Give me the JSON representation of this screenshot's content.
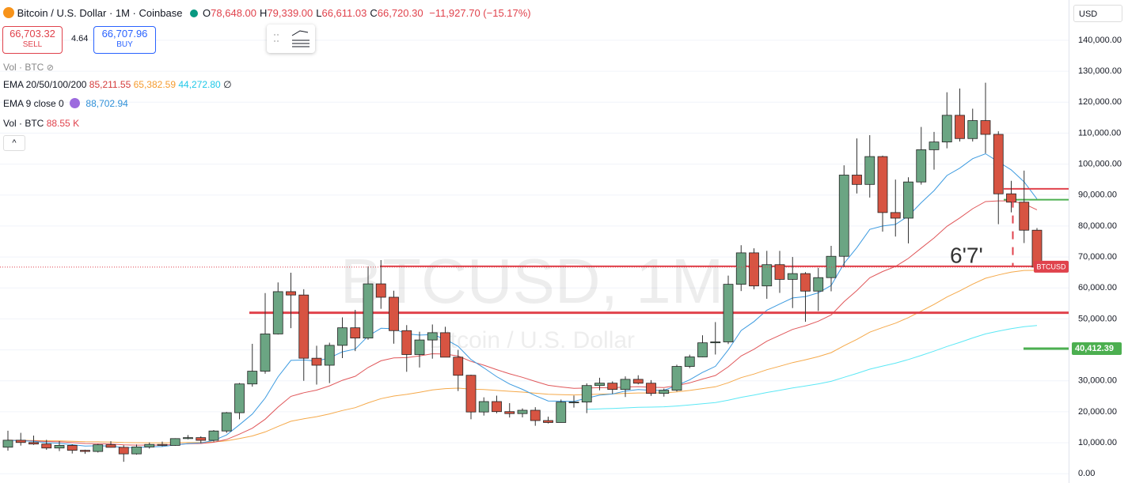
{
  "header": {
    "symbol": "Bitcoin / U.S. Dollar · 1M · Coinbase",
    "ohlc": [
      {
        "label": "O",
        "value": "78,648.00"
      },
      {
        "label": "H",
        "value": "79,339.00"
      },
      {
        "label": "L",
        "value": "66,611.03"
      },
      {
        "label": "C",
        "value": "66,720.30"
      }
    ],
    "change": "−11,927.70 (−15.17%)"
  },
  "trade": {
    "sell_price": "66,703.32",
    "sell": "SELL",
    "spread": "4.64",
    "buy_price": "66,707.96",
    "buy": "BUY"
  },
  "legend": {
    "vol_hidden": "Vol · BTC",
    "ema_multi": {
      "name": "EMA 20/50/100/200",
      "values": [
        "85,211.55",
        "65,382.59",
        "44,272.80",
        "∅"
      ]
    },
    "ema9": {
      "name": "EMA 9 close 0",
      "value": "88,702.94"
    },
    "vol": {
      "name": "Vol · BTC",
      "value": "88.55 K"
    }
  },
  "currency": "USD",
  "watermark": {
    "title": "BTCUSD, 1M",
    "subtitle": "Bitcoin / U.S. Dollar"
  },
  "annotation": "6'7'",
  "chart_data": {
    "type": "candlestick",
    "open": [
      8564,
      10818,
      10082,
      9590,
      8300,
      9150,
      7560,
      7190,
      9350,
      8520,
      6410,
      8630,
      9450,
      9140,
      11340,
      11650,
      10780,
      13800,
      19700,
      28990,
      33110,
      45140,
      58800,
      57720,
      37300,
      35040,
      41460,
      47130,
      43820,
      61320,
      57000,
      46210,
      38490,
      43190,
      45540,
      37640,
      31790,
      19940,
      23300,
      20050,
      19420,
      20490,
      17170,
      16540,
      23130,
      23150,
      28480,
      29250,
      27220,
      30480,
      29230,
      25940,
      26960,
      34650,
      37720,
      42280,
      42580,
      61180,
      71330,
      60650,
      67530,
      62770,
      64630,
      58980,
      63330,
      70220,
      96450,
      93430,
      102430,
      84350,
      82540,
      94230,
      104640,
      107140,
      115760,
      108250,
      114050,
      109600,
      90400,
      87700,
      78648
    ],
    "high": [
      13880,
      13200,
      12330,
      10950,
      10540,
      9510,
      7750,
      9580,
      10500,
      9190,
      9460,
      10080,
      10380,
      11450,
      12480,
      12080,
      14100,
      19940,
      29300,
      41950,
      58350,
      61780,
      64900,
      59590,
      41330,
      42320,
      50500,
      52920,
      67000,
      69000,
      59100,
      47990,
      45850,
      48200,
      47460,
      40000,
      31980,
      24670,
      25200,
      22800,
      21100,
      21480,
      18400,
      23960,
      25250,
      29190,
      31000,
      29830,
      31430,
      31800,
      30230,
      27490,
      35200,
      38440,
      44700,
      48970,
      64000,
      73800,
      72800,
      71980,
      71970,
      70000,
      65100,
      66500,
      73600,
      99600,
      108300,
      109350,
      102750,
      95000,
      95750,
      112000,
      110400,
      123200,
      124400,
      117900,
      126300,
      110600,
      94600,
      97900,
      79339
    ],
    "low": [
      7440,
      9080,
      9330,
      7710,
      7300,
      6520,
      6430,
      6850,
      8450,
      3850,
      6150,
      8100,
      8830,
      8990,
      11110,
      9880,
      10370,
      13200,
      17600,
      28120,
      32300,
      44960,
      47000,
      30000,
      28800,
      29280,
      37330,
      39600,
      43280,
      53260,
      42000,
      32920,
      34300,
      37160,
      37700,
      26700,
      17600,
      18780,
      19520,
      18150,
      18200,
      15480,
      16260,
      16500,
      21350,
      19570,
      26940,
      25800,
      24760,
      28860,
      25160,
      24900,
      26560,
      34100,
      37600,
      38500,
      41880,
      59000,
      59600,
      56500,
      58400,
      53500,
      49100,
      52550,
      58900,
      66800,
      90500,
      89200,
      78200,
      76600,
      74400,
      93370,
      98200,
      105100,
      107300,
      107300,
      103500,
      80600,
      84400,
      74500,
      66611.03
    ],
    "close": [
      10818,
      10082,
      9590,
      8300,
      9150,
      7560,
      7190,
      9350,
      8520,
      6410,
      8630,
      9450,
      9140,
      11340,
      11650,
      10780,
      13800,
      19700,
      28990,
      33110,
      45140,
      58800,
      57720,
      37300,
      35040,
      41460,
      47130,
      43820,
      61320,
      57000,
      46210,
      38490,
      43190,
      45540,
      37640,
      31790,
      19940,
      23300,
      20050,
      19420,
      20490,
      17170,
      16540,
      23130,
      23150,
      28480,
      29250,
      27220,
      30480,
      29230,
      25940,
      26960,
      34650,
      37720,
      42280,
      42580,
      61180,
      71330,
      60650,
      67530,
      62770,
      64630,
      58980,
      63330,
      70220,
      96450,
      93430,
      102430,
      84350,
      82540,
      94230,
      104640,
      107140,
      115760,
      108250,
      114050,
      109600,
      90400,
      87700,
      78648,
      66720.3
    ],
    "up_color": "#6ba583",
    "down_color": "#d75442",
    "ylim": [
      -3000,
      153000
    ],
    "yticks": [
      {
        "value": 0,
        "label": "0.00"
      },
      {
        "value": 10000,
        "label": "10,000.00"
      },
      {
        "value": 20000,
        "label": "20,000.00"
      },
      {
        "value": 30000,
        "label": "30,000.00"
      },
      {
        "value": 40000,
        "label": "40,000.00"
      },
      {
        "value": 50000,
        "label": "50,000.00"
      },
      {
        "value": 60000,
        "label": "60,000.00"
      },
      {
        "value": 70000,
        "label": "70,000.00"
      },
      {
        "value": 80000,
        "label": "80,000.00"
      },
      {
        "value": 90000,
        "label": "90,000.00"
      },
      {
        "value": 100000,
        "label": "100,000.00"
      },
      {
        "value": 110000,
        "label": "110,000.00"
      },
      {
        "value": 120000,
        "label": "120,000.00"
      },
      {
        "value": 130000,
        "label": "130,000.00"
      },
      {
        "value": 140000,
        "label": "140,000.00"
      }
    ],
    "grid": true,
    "hlines": [
      {
        "value": 92000,
        "color": "#e0424c"
      },
      {
        "value": 88500,
        "color": "#4caf50"
      },
      {
        "value": 67000,
        "color": "#e0424c"
      },
      {
        "value": 52000,
        "color": "#e0424c"
      }
    ],
    "price_line": {
      "value": 66720.3,
      "label": "BTCUSD",
      "color": "#e0424c"
    },
    "level_line": {
      "value": 40412.39,
      "label": "40,412.39",
      "color": "#4caf50"
    }
  }
}
